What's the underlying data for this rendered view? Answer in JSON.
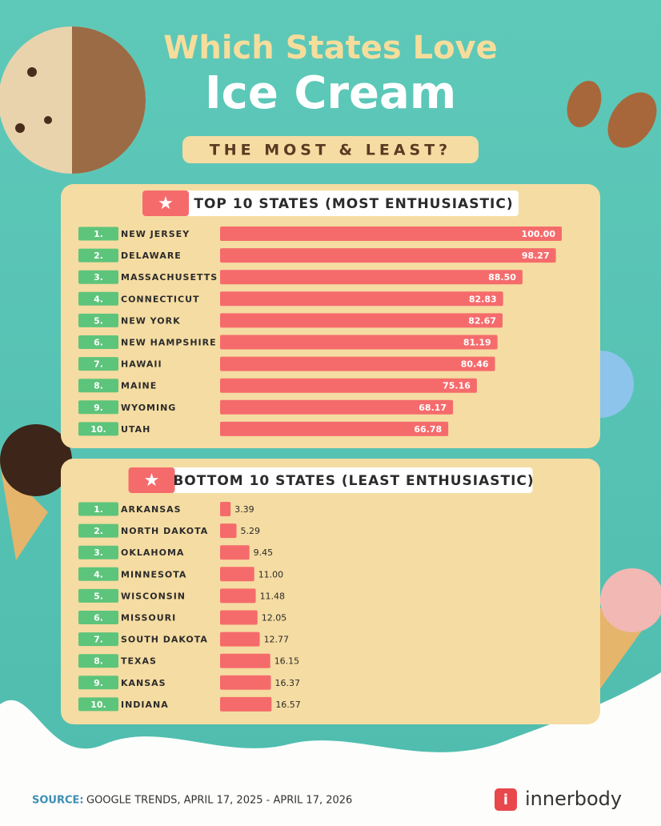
{
  "title_line1": "Which States Love",
  "title_line2": "Ice Cream",
  "subtitle": "THE MOST & LEAST?",
  "chart_data": [
    {
      "type": "bar",
      "orientation": "horizontal",
      "title": "TOP 10 STATES (MOST ENTHUSIASTIC)",
      "ranks": [
        "1.",
        "2.",
        "3.",
        "4.",
        "5.",
        "6.",
        "7.",
        "8.",
        "9.",
        "10."
      ],
      "categories": [
        "NEW JERSEY",
        "DELAWARE",
        "MASSACHUSETTS",
        "CONNECTICUT",
        "NEW YORK",
        "NEW HAMPSHIRE",
        "HAWAII",
        "MAINE",
        "WYOMING",
        "UTAH"
      ],
      "values": [
        100,
        98.27,
        88.5,
        82.83,
        82.67,
        81.19,
        80.46,
        75.16,
        68.17,
        66.78
      ],
      "value_labels": [
        "100.00",
        "98.27",
        "88.50",
        "82.83",
        "82.67",
        "81.19",
        "80.46",
        "75.16",
        "68.17",
        "66.78"
      ],
      "color": "#f56b6c",
      "xlim": [
        0,
        100
      ],
      "label_position": "inside"
    },
    {
      "type": "bar",
      "orientation": "horizontal",
      "title": "BOTTOM 10 STATES (LEAST ENTHUSIASTIC)",
      "ranks": [
        "1.",
        "2.",
        "3.",
        "4.",
        "5.",
        "6.",
        "7.",
        "8.",
        "9.",
        "10."
      ],
      "categories": [
        "ARKANSAS",
        "NORTH DAKOTA",
        "OKLAHOMA",
        "MINNESOTA",
        "WISCONSIN",
        "MISSOURI",
        "SOUTH DAKOTA",
        "TEXAS",
        "KANSAS",
        "INDIANA"
      ],
      "values": [
        3.39,
        5.29,
        9.45,
        11,
        11.48,
        12.05,
        12.77,
        16.15,
        16.37,
        16.57
      ],
      "value_labels": [
        "3.39",
        "5.29",
        "9.45",
        "11.00",
        "11.48",
        "12.05",
        "12.77",
        "16.15",
        "16.37",
        "16.57"
      ],
      "color": "#f56b6c",
      "xlim": [
        0,
        110
      ],
      "label_position": "outside"
    }
  ],
  "source_label": "SOURCE:",
  "source": "GOOGLE TRENDS, APRIL 17, 2025 - APRIL 17, 2026",
  "brand": "innerbody"
}
